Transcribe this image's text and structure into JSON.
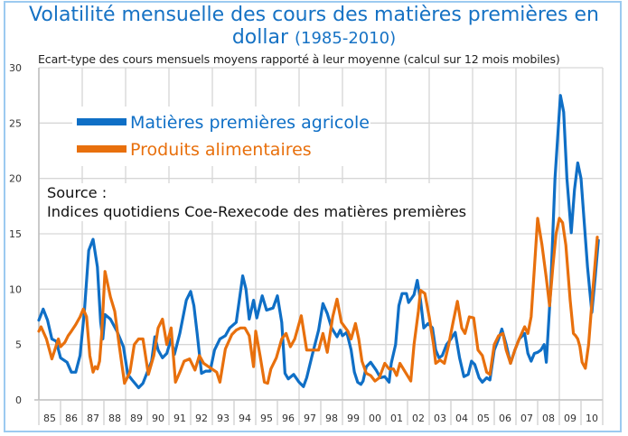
{
  "chart_data": {
    "type": "line",
    "title": "Volatilité mensuelle des cours des matières premières en dollar",
    "title_period": "(1985-2010)",
    "subtitle": "Ecart-type des cours mensuels moyens rapporté à leur moyenne (calcul sur 12 mois mobiles)",
    "xlabel": "",
    "ylabel": "",
    "ylim": [
      0,
      30
    ],
    "yticks": [
      0,
      5,
      10,
      15,
      20,
      25,
      30
    ],
    "xlim": [
      1985,
      2011
    ],
    "xtick_labels": [
      "85",
      "86",
      "87",
      "88",
      "89",
      "90",
      "91",
      "92",
      "93",
      "94",
      "95",
      "96",
      "97",
      "98",
      "99",
      "00",
      "01",
      "02",
      "03",
      "04",
      "05",
      "06",
      "07",
      "08",
      "09",
      "10"
    ],
    "grid": true,
    "legend_position": "top-left",
    "annotation": {
      "line1": "Source :",
      "line2": "Indices quotidiens Coe-Rexecode des matières premières"
    },
    "series": [
      {
        "name": "Matières premières agricoles",
        "color": "#0f6fc6",
        "points": [
          [
            1985.0,
            7.2
          ],
          [
            1985.2,
            8.2
          ],
          [
            1985.4,
            7.2
          ],
          [
            1985.6,
            5.5
          ],
          [
            1985.8,
            5.3
          ],
          [
            1986.0,
            3.8
          ],
          [
            1986.3,
            3.4
          ],
          [
            1986.5,
            2.5
          ],
          [
            1986.7,
            2.5
          ],
          [
            1986.9,
            4.0
          ],
          [
            1987.1,
            8.0
          ],
          [
            1987.3,
            13.5
          ],
          [
            1987.5,
            14.5
          ],
          [
            1987.7,
            12.0
          ],
          [
            1987.85,
            7.0
          ],
          [
            1987.95,
            5.5
          ],
          [
            1988.05,
            7.7
          ],
          [
            1988.3,
            7.3
          ],
          [
            1988.6,
            6.2
          ],
          [
            1988.9,
            4.8
          ],
          [
            1989.1,
            2.3
          ],
          [
            1989.3,
            1.8
          ],
          [
            1989.6,
            1.1
          ],
          [
            1989.8,
            1.5
          ],
          [
            1990.0,
            2.5
          ],
          [
            1990.2,
            3.5
          ],
          [
            1990.35,
            5.7
          ],
          [
            1990.5,
            4.5
          ],
          [
            1990.7,
            3.8
          ],
          [
            1990.9,
            4.2
          ],
          [
            1991.1,
            5.5
          ],
          [
            1991.25,
            4.1
          ],
          [
            1991.5,
            6.0
          ],
          [
            1991.8,
            9.0
          ],
          [
            1992.0,
            9.8
          ],
          [
            1992.15,
            8.5
          ],
          [
            1992.3,
            6.0
          ],
          [
            1992.5,
            2.4
          ],
          [
            1992.7,
            2.6
          ],
          [
            1992.9,
            2.6
          ],
          [
            1993.1,
            4.5
          ],
          [
            1993.35,
            5.5
          ],
          [
            1993.6,
            5.8
          ],
          [
            1993.8,
            6.5
          ],
          [
            1994.1,
            7.0
          ],
          [
            1994.4,
            11.2
          ],
          [
            1994.55,
            10.0
          ],
          [
            1994.7,
            7.3
          ],
          [
            1994.9,
            9.0
          ],
          [
            1995.05,
            7.4
          ],
          [
            1995.3,
            9.4
          ],
          [
            1995.5,
            8.1
          ],
          [
            1995.8,
            8.3
          ],
          [
            1996.0,
            9.4
          ],
          [
            1996.2,
            7.0
          ],
          [
            1996.35,
            2.4
          ],
          [
            1996.5,
            1.9
          ],
          [
            1996.75,
            2.3
          ],
          [
            1997.0,
            1.6
          ],
          [
            1997.2,
            1.2
          ],
          [
            1997.35,
            2.0
          ],
          [
            1997.6,
            4.0
          ],
          [
            1997.9,
            6.3
          ],
          [
            1998.1,
            8.7
          ],
          [
            1998.3,
            7.8
          ],
          [
            1998.5,
            6.5
          ],
          [
            1998.75,
            5.7
          ],
          [
            1998.9,
            6.3
          ],
          [
            1999.0,
            5.8
          ],
          [
            1999.2,
            6.1
          ],
          [
            1999.4,
            4.5
          ],
          [
            1999.55,
            2.5
          ],
          [
            1999.7,
            1.6
          ],
          [
            1999.85,
            1.4
          ],
          [
            1999.95,
            1.7
          ],
          [
            2000.1,
            3.0
          ],
          [
            2000.3,
            3.4
          ],
          [
            2000.55,
            2.7
          ],
          [
            2000.75,
            2.0
          ],
          [
            2000.95,
            2.1
          ],
          [
            2001.15,
            1.6
          ],
          [
            2001.25,
            3.3
          ],
          [
            2001.45,
            5.0
          ],
          [
            2001.6,
            8.5
          ],
          [
            2001.75,
            9.6
          ],
          [
            2001.95,
            9.6
          ],
          [
            2002.05,
            8.8
          ],
          [
            2002.3,
            9.5
          ],
          [
            2002.45,
            10.8
          ],
          [
            2002.6,
            9.0
          ],
          [
            2002.75,
            6.5
          ],
          [
            2002.95,
            6.9
          ],
          [
            2003.15,
            6.5
          ],
          [
            2003.3,
            4.5
          ],
          [
            2003.45,
            3.8
          ],
          [
            2003.6,
            4.0
          ],
          [
            2003.8,
            5.0
          ],
          [
            2004.0,
            5.5
          ],
          [
            2004.2,
            6.1
          ],
          [
            2004.4,
            3.8
          ],
          [
            2004.6,
            2.1
          ],
          [
            2004.8,
            2.3
          ],
          [
            2004.95,
            3.5
          ],
          [
            2005.1,
            3.2
          ],
          [
            2005.3,
            2.0
          ],
          [
            2005.45,
            1.6
          ],
          [
            2005.65,
            2.0
          ],
          [
            2005.8,
            1.8
          ],
          [
            2006.0,
            4.5
          ],
          [
            2006.2,
            5.5
          ],
          [
            2006.35,
            6.4
          ],
          [
            2006.55,
            5.0
          ],
          [
            2006.75,
            3.3
          ],
          [
            2006.95,
            4.5
          ],
          [
            2007.15,
            5.5
          ],
          [
            2007.4,
            6.0
          ],
          [
            2007.55,
            4.2
          ],
          [
            2007.7,
            3.5
          ],
          [
            2007.85,
            4.2
          ],
          [
            2008.0,
            4.3
          ],
          [
            2008.15,
            4.5
          ],
          [
            2008.3,
            5.0
          ],
          [
            2008.4,
            3.4
          ],
          [
            2008.6,
            10.0
          ],
          [
            2008.8,
            20.0
          ],
          [
            2009.0,
            26.0
          ],
          [
            2009.05,
            27.5
          ],
          [
            2009.2,
            26.0
          ],
          [
            2009.35,
            20.0
          ],
          [
            2009.55,
            15.1
          ],
          [
            2009.7,
            19.0
          ],
          [
            2009.85,
            21.4
          ],
          [
            2010.0,
            20.0
          ],
          [
            2010.15,
            16.0
          ],
          [
            2010.3,
            12.0
          ],
          [
            2010.5,
            7.9
          ],
          [
            2010.65,
            11.0
          ],
          [
            2010.8,
            14.4
          ]
        ]
      },
      {
        "name": "Produits alimentaires",
        "color": "#e8700d",
        "points": [
          [
            1985.0,
            6.2
          ],
          [
            1985.1,
            6.6
          ],
          [
            1985.35,
            5.5
          ],
          [
            1985.6,
            3.7
          ],
          [
            1985.9,
            5.5
          ],
          [
            1986.0,
            4.8
          ],
          [
            1986.2,
            5.2
          ],
          [
            1986.35,
            5.8
          ],
          [
            1986.5,
            6.2
          ],
          [
            1986.7,
            6.8
          ],
          [
            1986.9,
            7.5
          ],
          [
            1987.05,
            8.2
          ],
          [
            1987.2,
            7.5
          ],
          [
            1987.35,
            4.0
          ],
          [
            1987.5,
            2.5
          ],
          [
            1987.6,
            3.0
          ],
          [
            1987.7,
            2.8
          ],
          [
            1987.8,
            3.5
          ],
          [
            1987.9,
            6.0
          ],
          [
            1988.05,
            11.6
          ],
          [
            1988.3,
            9.3
          ],
          [
            1988.5,
            8.0
          ],
          [
            1988.7,
            5.0
          ],
          [
            1988.95,
            1.5
          ],
          [
            1989.2,
            2.5
          ],
          [
            1989.4,
            5.0
          ],
          [
            1989.6,
            5.5
          ],
          [
            1989.8,
            5.5
          ],
          [
            1990.05,
            2.3
          ],
          [
            1990.3,
            4.0
          ],
          [
            1990.5,
            6.5
          ],
          [
            1990.7,
            7.3
          ],
          [
            1990.9,
            5.0
          ],
          [
            1991.1,
            6.5
          ],
          [
            1991.3,
            1.6
          ],
          [
            1991.5,
            2.5
          ],
          [
            1991.7,
            3.5
          ],
          [
            1991.95,
            3.7
          ],
          [
            1992.2,
            2.7
          ],
          [
            1992.4,
            4.0
          ],
          [
            1992.6,
            3.3
          ],
          [
            1992.9,
            2.9
          ],
          [
            1993.2,
            2.5
          ],
          [
            1993.35,
            1.6
          ],
          [
            1993.6,
            4.6
          ],
          [
            1993.9,
            5.9
          ],
          [
            1994.1,
            6.3
          ],
          [
            1994.3,
            6.5
          ],
          [
            1994.5,
            6.5
          ],
          [
            1994.7,
            5.8
          ],
          [
            1994.9,
            3.0
          ],
          [
            1995.0,
            6.2
          ],
          [
            1995.2,
            4.0
          ],
          [
            1995.4,
            1.6
          ],
          [
            1995.55,
            1.5
          ],
          [
            1995.7,
            2.8
          ],
          [
            1995.95,
            3.8
          ],
          [
            1996.2,
            5.5
          ],
          [
            1996.4,
            6.0
          ],
          [
            1996.6,
            4.8
          ],
          [
            1996.8,
            5.5
          ],
          [
            1997.1,
            7.6
          ],
          [
            1997.35,
            4.5
          ],
          [
            1997.6,
            4.5
          ],
          [
            1997.9,
            4.5
          ],
          [
            1998.1,
            6.0
          ],
          [
            1998.3,
            4.3
          ],
          [
            1998.55,
            7.5
          ],
          [
            1998.75,
            9.1
          ],
          [
            1998.95,
            7.0
          ],
          [
            1999.25,
            6.2
          ],
          [
            1999.4,
            5.5
          ],
          [
            1999.6,
            6.9
          ],
          [
            1999.75,
            5.5
          ],
          [
            1999.9,
            3.5
          ],
          [
            2000.1,
            2.4
          ],
          [
            2000.3,
            2.2
          ],
          [
            2000.5,
            1.7
          ],
          [
            2000.7,
            2.0
          ],
          [
            2000.95,
            3.3
          ],
          [
            2001.15,
            2.8
          ],
          [
            2001.35,
            2.8
          ],
          [
            2001.5,
            2.2
          ],
          [
            2001.65,
            3.3
          ],
          [
            2001.9,
            2.5
          ],
          [
            2002.15,
            1.7
          ],
          [
            2002.3,
            5.0
          ],
          [
            2002.5,
            8.0
          ],
          [
            2002.6,
            9.9
          ],
          [
            2002.8,
            9.6
          ],
          [
            2003.0,
            7.5
          ],
          [
            2003.2,
            5.0
          ],
          [
            2003.3,
            3.3
          ],
          [
            2003.5,
            3.6
          ],
          [
            2003.7,
            3.3
          ],
          [
            2003.9,
            5.0
          ],
          [
            2004.1,
            7.0
          ],
          [
            2004.3,
            8.9
          ],
          [
            2004.5,
            6.5
          ],
          [
            2004.65,
            6.0
          ],
          [
            2004.85,
            7.5
          ],
          [
            2005.05,
            7.4
          ],
          [
            2005.25,
            4.5
          ],
          [
            2005.45,
            4.0
          ],
          [
            2005.65,
            2.5
          ],
          [
            2005.8,
            2.3
          ],
          [
            2006.0,
            5.0
          ],
          [
            2006.2,
            5.8
          ],
          [
            2006.4,
            6.0
          ],
          [
            2006.55,
            4.5
          ],
          [
            2006.75,
            3.3
          ],
          [
            2006.95,
            4.5
          ],
          [
            2007.15,
            5.5
          ],
          [
            2007.4,
            6.6
          ],
          [
            2007.55,
            6.0
          ],
          [
            2007.7,
            7.5
          ],
          [
            2007.85,
            11.9
          ],
          [
            2008.0,
            16.4
          ],
          [
            2008.2,
            14.0
          ],
          [
            2008.4,
            11.0
          ],
          [
            2008.55,
            8.5
          ],
          [
            2008.7,
            12.0
          ],
          [
            2008.85,
            15.0
          ],
          [
            2009.0,
            16.4
          ],
          [
            2009.15,
            16.0
          ],
          [
            2009.3,
            14.0
          ],
          [
            2009.5,
            9.0
          ],
          [
            2009.65,
            6.0
          ],
          [
            2009.75,
            5.8
          ],
          [
            2009.85,
            5.5
          ],
          [
            2009.95,
            4.8
          ],
          [
            2010.05,
            3.4
          ],
          [
            2010.2,
            2.85
          ],
          [
            2010.35,
            5.0
          ],
          [
            2010.55,
            10.0
          ],
          [
            2010.75,
            14.7
          ]
        ]
      }
    ]
  }
}
